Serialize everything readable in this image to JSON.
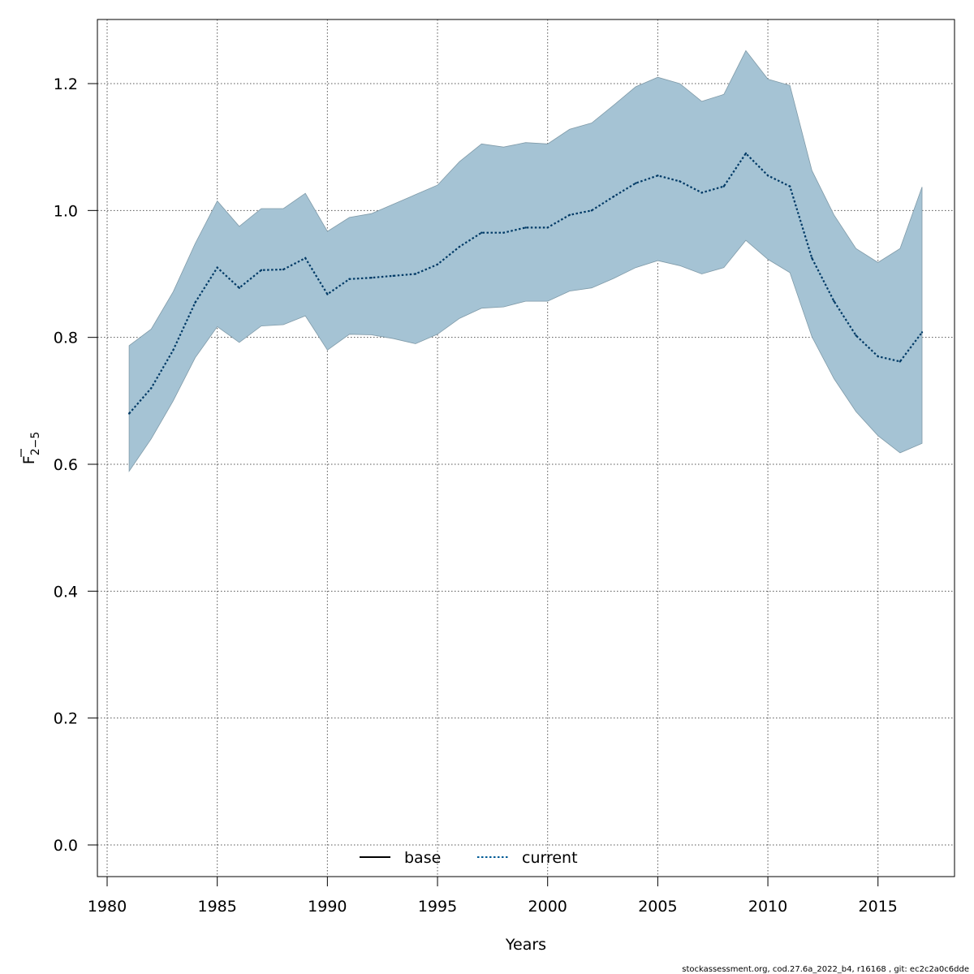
{
  "chart_data": {
    "type": "area",
    "xlabel": "Years",
    "ylabel": "F",
    "ylabel_bar": true,
    "ylabel_subscript": "2−5",
    "xlim": [
      1980,
      2017
    ],
    "ylim": [
      0,
      1.2
    ],
    "xticks": [
      "1980",
      "1985",
      "1990",
      "1995",
      "2000",
      "2005",
      "2010",
      "2015"
    ],
    "yticks": [
      "0.0",
      "0.2",
      "0.4",
      "0.6",
      "0.8",
      "1.0",
      "1.2"
    ],
    "grid": true,
    "legend_position": "bottom-center",
    "legend": [
      {
        "name": "base",
        "style": "solid",
        "color": "#000000"
      },
      {
        "name": "current",
        "style": "dotted",
        "color": "#005b96"
      }
    ],
    "band_color": "#a5c3d4",
    "x": [
      1981,
      1982,
      1983,
      1984,
      1985,
      1986,
      1987,
      1988,
      1989,
      1990,
      1991,
      1992,
      1993,
      1994,
      1995,
      1996,
      1997,
      1998,
      1999,
      2000,
      2001,
      2002,
      2003,
      2004,
      2005,
      2006,
      2007,
      2008,
      2009,
      2010,
      2011,
      2012,
      2013,
      2014,
      2015,
      2016,
      2017
    ],
    "series": [
      {
        "name": "current",
        "role": "line",
        "values": [
          0.68,
          0.72,
          0.78,
          0.855,
          0.91,
          0.878,
          0.906,
          0.907,
          0.925,
          0.868,
          0.892,
          0.894,
          0.897,
          0.9,
          0.915,
          0.943,
          0.965,
          0.965,
          0.973,
          0.973,
          0.993,
          1.0,
          1.022,
          1.043,
          1.055,
          1.046,
          1.028,
          1.038,
          1.09,
          1.055,
          1.038,
          0.925,
          0.857,
          0.803,
          0.77,
          0.762,
          0.808
        ]
      },
      {
        "name": "upper",
        "role": "band-upper",
        "values": [
          0.787,
          0.813,
          0.872,
          0.948,
          1.015,
          0.975,
          1.003,
          1.003,
          1.027,
          0.967,
          0.989,
          0.995,
          1.01,
          1.025,
          1.04,
          1.077,
          1.105,
          1.1,
          1.107,
          1.105,
          1.128,
          1.138,
          1.166,
          1.195,
          1.21,
          1.2,
          1.172,
          1.183,
          1.252,
          1.207,
          1.197,
          1.063,
          0.993,
          0.94,
          0.918,
          0.94,
          1.037
        ]
      },
      {
        "name": "lower",
        "role": "band-lower",
        "values": [
          0.589,
          0.64,
          0.7,
          0.768,
          0.817,
          0.792,
          0.818,
          0.82,
          0.834,
          0.78,
          0.805,
          0.804,
          0.798,
          0.79,
          0.805,
          0.83,
          0.846,
          0.848,
          0.857,
          0.857,
          0.873,
          0.878,
          0.893,
          0.91,
          0.921,
          0.913,
          0.9,
          0.91,
          0.953,
          0.923,
          0.902,
          0.801,
          0.735,
          0.683,
          0.645,
          0.618,
          0.633
        ]
      }
    ]
  },
  "footer": "stockassessment.org, cod.27.6a_2022_b4, r16168 , git: ec2c2a0c6dde"
}
